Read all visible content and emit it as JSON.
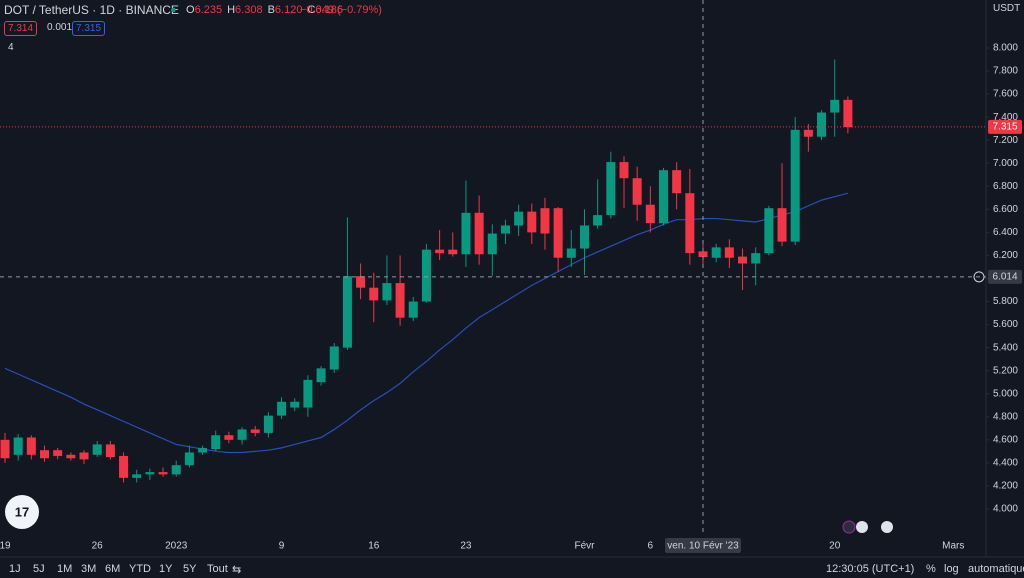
{
  "header": {
    "symbol": "DOT / TetherUS · 1D · BINANCE",
    "ohlc": [
      {
        "key": "O",
        "value": "6.235"
      },
      {
        "key": "H",
        "value": "6.308"
      },
      {
        "key": "B",
        "value": "6.120"
      },
      {
        "key": "C",
        "value": "6.186"
      }
    ],
    "change": "−0.049 (−0.79%)",
    "bid": "7.314",
    "spread": "0.001",
    "ask": "7.315",
    "indicators": "4",
    "currency": "USDT"
  },
  "chart_data": {
    "type": "candlestick",
    "categories": [
      "19",
      null,
      null,
      null,
      null,
      null,
      null,
      "26",
      null,
      null,
      null,
      null,
      null,
      "2023",
      null,
      null,
      null,
      null,
      null,
      null,
      null,
      "9",
      null,
      null,
      null,
      null,
      null,
      null,
      "16",
      null,
      null,
      null,
      null,
      null,
      null,
      "23",
      null,
      null,
      null,
      null,
      null,
      null,
      null,
      null,
      "Févr",
      null,
      null,
      null,
      null,
      "6",
      null,
      null,
      null,
      null,
      null,
      null,
      null,
      null,
      null,
      null,
      null,
      null,
      null,
      "20",
      null,
      null,
      null,
      null,
      null,
      null,
      null,
      null,
      "Mars"
    ],
    "open": [
      4.6,
      4.47,
      4.62,
      4.51,
      4.51,
      4.47,
      4.49,
      4.47,
      4.56,
      4.46,
      4.27,
      4.3,
      4.32,
      4.3,
      4.38,
      4.49,
      4.52,
      4.64,
      4.6,
      4.69,
      4.66,
      4.81,
      4.88,
      4.88,
      5.1,
      5.21,
      5.4,
      6.02,
      5.92,
      5.81,
      5.96,
      5.66,
      5.8,
      6.25,
      6.25,
      6.21,
      6.57,
      6.21,
      6.39,
      6.46,
      6.58,
      6.61,
      6.61,
      6.18,
      6.26,
      6.46,
      6.55,
      7.01,
      6.87,
      6.64,
      6.48,
      6.94,
      6.74,
      6.235,
      6.18,
      6.27,
      6.19,
      6.13,
      6.22,
      6.61,
      6.32,
      7.29,
      7.23,
      7.44,
      7.55,
      null,
      null,
      null,
      null,
      null,
      null,
      null,
      null
    ],
    "high": [
      4.66,
      4.65,
      4.64,
      4.55,
      4.53,
      4.49,
      4.51,
      4.59,
      4.59,
      4.49,
      4.34,
      4.35,
      4.36,
      4.42,
      4.55,
      4.55,
      4.68,
      4.67,
      4.71,
      4.72,
      4.84,
      4.97,
      4.96,
      5.16,
      5.24,
      5.44,
      6.53,
      6.13,
      6.05,
      6.2,
      6.2,
      5.84,
      6.3,
      6.42,
      6.4,
      6.85,
      6.72,
      6.47,
      6.51,
      6.64,
      6.65,
      6.7,
      6.62,
      6.42,
      6.6,
      6.86,
      7.1,
      7.06,
      6.97,
      6.8,
      6.96,
      7.01,
      6.95,
      6.308,
      6.3,
      6.34,
      6.26,
      6.27,
      6.63,
      7.0,
      7.4,
      7.34,
      7.46,
      7.9,
      7.58,
      null,
      null,
      null,
      null,
      null,
      null,
      null,
      null
    ],
    "low": [
      4.4,
      4.42,
      4.43,
      4.41,
      4.43,
      4.42,
      4.39,
      4.45,
      4.43,
      4.23,
      4.23,
      4.25,
      4.28,
      4.28,
      4.36,
      4.47,
      4.5,
      4.57,
      4.56,
      4.63,
      4.62,
      4.78,
      4.85,
      4.8,
      5.07,
      5.18,
      5.38,
      5.82,
      5.62,
      5.77,
      5.59,
      5.63,
      5.79,
      6.16,
      6.19,
      6.1,
      6.12,
      6.02,
      6.3,
      6.37,
      6.3,
      6.25,
      6.06,
      6.1,
      6.03,
      6.43,
      6.52,
      6.61,
      6.5,
      6.4,
      6.46,
      6.6,
      6.12,
      6.12,
      6.14,
      6.09,
      5.9,
      5.94,
      6.2,
      6.28,
      6.29,
      7.1,
      7.2,
      7.23,
      7.26,
      null,
      null,
      null,
      null,
      null,
      null,
      null,
      null
    ],
    "close": [
      4.44,
      4.62,
      4.47,
      4.44,
      4.46,
      4.44,
      4.43,
      4.56,
      4.45,
      4.27,
      4.3,
      4.32,
      4.3,
      4.38,
      4.49,
      4.53,
      4.64,
      4.6,
      4.69,
      4.66,
      4.81,
      4.93,
      4.93,
      5.12,
      5.22,
      5.41,
      6.02,
      5.92,
      5.81,
      5.96,
      5.66,
      5.8,
      6.25,
      6.22,
      6.21,
      6.57,
      6.21,
      6.39,
      6.46,
      6.58,
      6.4,
      6.39,
      6.18,
      6.26,
      6.46,
      6.55,
      7.01,
      6.87,
      6.64,
      6.48,
      6.94,
      6.74,
      6.22,
      6.186,
      6.27,
      6.18,
      6.13,
      6.22,
      6.61,
      6.32,
      7.29,
      7.23,
      7.44,
      7.55,
      7.314,
      null,
      null,
      null,
      null,
      null,
      null,
      null,
      null
    ],
    "ma": [
      5.22,
      5.17,
      5.12,
      5.07,
      5.02,
      4.97,
      4.91,
      4.86,
      4.81,
      4.76,
      4.71,
      4.66,
      4.61,
      4.56,
      4.54,
      4.52,
      4.5,
      4.49,
      4.49,
      4.5,
      4.51,
      4.53,
      4.56,
      4.59,
      4.62,
      4.69,
      4.77,
      4.86,
      4.94,
      5.01,
      5.09,
      5.19,
      5.28,
      5.38,
      5.47,
      5.57,
      5.66,
      5.73,
      5.8,
      5.87,
      5.94,
      6.0,
      6.06,
      6.12,
      6.18,
      6.23,
      6.28,
      6.33,
      6.38,
      6.42,
      6.47,
      6.51,
      6.51,
      6.52,
      6.52,
      6.51,
      6.5,
      6.49,
      6.52,
      6.55,
      6.58,
      6.63,
      6.68,
      6.71,
      6.74,
      null,
      null,
      null,
      null,
      null,
      null,
      null,
      null
    ],
    "up_color": "#089981",
    "down_color": "#f23645",
    "ma_color": "#2a4eb8",
    "ylim": [
      3.774,
      8.4165
    ],
    "yticks": [
      {
        "value": 4,
        "label": "4.000"
      },
      {
        "value": 4.2,
        "label": "4.200"
      },
      {
        "value": 4.4,
        "label": "4.400"
      },
      {
        "value": 4.6,
        "label": "4.600"
      },
      {
        "value": 4.8,
        "label": "4.800"
      },
      {
        "value": 5,
        "label": "5.000"
      },
      {
        "value": 5.2,
        "label": "5.200"
      },
      {
        "value": 5.4,
        "label": "5.400"
      },
      {
        "value": 5.6,
        "label": "5.600"
      },
      {
        "value": 5.8,
        "label": "5.800"
      },
      {
        "value": 6,
        "label": "6.000"
      },
      {
        "value": 6.2,
        "label": "6.200"
      },
      {
        "value": 6.4,
        "label": "6.400"
      },
      {
        "value": 6.6,
        "label": "6.600"
      },
      {
        "value": 6.8,
        "label": "6.800"
      },
      {
        "value": 7,
        "label": "7.000"
      },
      {
        "value": 7.2,
        "label": "7.200"
      },
      {
        "value": 7.4,
        "label": "7.400"
      },
      {
        "value": 7.6,
        "label": "7.600"
      },
      {
        "value": 7.8,
        "label": "7.800"
      },
      {
        "value": 8,
        "label": "8.000"
      }
    ],
    "last_price": {
      "value": 7.315,
      "label": "7.315"
    },
    "crosshair": {
      "date": "ven. 10 Févr '23",
      "price": {
        "value": 6.014,
        "label": "6.014"
      }
    },
    "grid": false
  },
  "toolbar": {
    "ranges": [
      "1J",
      "5J",
      "1M",
      "3M",
      "6M",
      "YTD",
      "1Y",
      "5Y",
      "Tout"
    ],
    "clock": "12:30:05 (UTC+1)",
    "percent": "%",
    "log": "log",
    "auto": "automatique"
  }
}
